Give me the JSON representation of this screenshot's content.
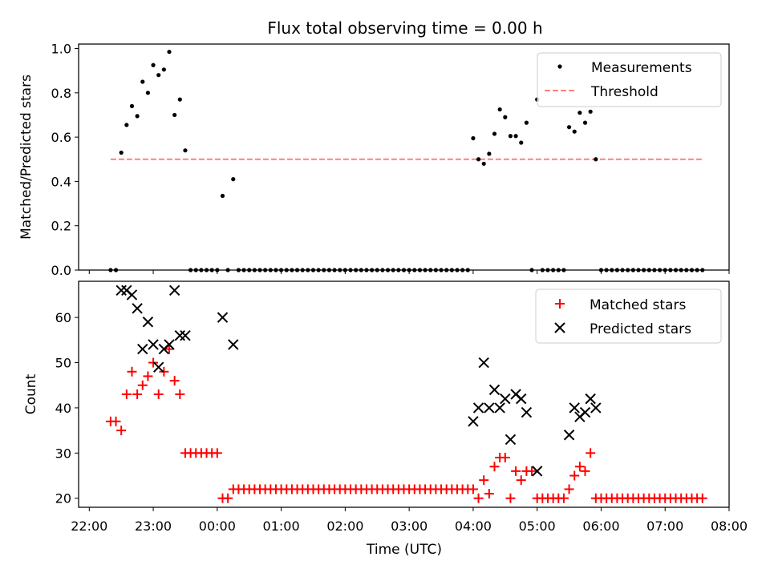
{
  "chart_data": [
    {
      "type": "scatter",
      "title": "Flux total observing time = 0.00 h",
      "ylabel": "Matched/Predicted stars",
      "xlabel": "",
      "xlim": [
        "21:50",
        "08:00"
      ],
      "ylim": [
        0,
        1.02
      ],
      "yticks": [
        "0.0",
        "0.2",
        "0.4",
        "0.6",
        "0.8",
        "1.0"
      ],
      "legend": {
        "placement": "top-right",
        "entries": [
          "Measurements",
          "Threshold"
        ]
      },
      "colors": {
        "measurements": "#000000",
        "threshold": "#ff8080"
      },
      "threshold": {
        "name": "Threshold",
        "value": 0.5,
        "x": [
          "22:20",
          "07:35"
        ]
      },
      "series": [
        {
          "name": "Measurements",
          "points": [
            [
              "22:20",
              0
            ],
            [
              "22:25",
              0
            ],
            [
              "22:30",
              0.53
            ],
            [
              "22:35",
              0.655
            ],
            [
              "22:40",
              0.74
            ],
            [
              "22:45",
              0.695
            ],
            [
              "22:50",
              0.85
            ],
            [
              "22:55",
              0.8
            ],
            [
              "23:00",
              0.925
            ],
            [
              "23:05",
              0.88
            ],
            [
              "23:10",
              0.905
            ],
            [
              "23:15",
              0.985
            ],
            [
              "23:20",
              0.7
            ],
            [
              "23:25",
              0.77
            ],
            [
              "23:30",
              0.54
            ],
            [
              "23:35",
              0
            ],
            [
              "23:40",
              0
            ],
            [
              "23:45",
              0
            ],
            [
              "23:50",
              0
            ],
            [
              "23:55",
              0
            ],
            [
              "00:00",
              0
            ],
            [
              "00:05",
              0.335
            ],
            [
              "00:10",
              0
            ],
            [
              "00:15",
              0.41
            ],
            [
              "00:20",
              0
            ],
            [
              "00:25",
              0
            ],
            [
              "00:30",
              0
            ],
            [
              "00:35",
              0
            ],
            [
              "00:40",
              0
            ],
            [
              "00:45",
              0
            ],
            [
              "00:50",
              0
            ],
            [
              "00:55",
              0
            ],
            [
              "01:00",
              0
            ],
            [
              "01:05",
              0
            ],
            [
              "01:10",
              0
            ],
            [
              "01:15",
              0
            ],
            [
              "01:20",
              0
            ],
            [
              "01:25",
              0
            ],
            [
              "01:30",
              0
            ],
            [
              "01:35",
              0
            ],
            [
              "01:40",
              0
            ],
            [
              "01:45",
              0
            ],
            [
              "01:50",
              0
            ],
            [
              "01:55",
              0
            ],
            [
              "02:00",
              0
            ],
            [
              "02:05",
              0
            ],
            [
              "02:10",
              0
            ],
            [
              "02:15",
              0
            ],
            [
              "02:20",
              0
            ],
            [
              "02:25",
              0
            ],
            [
              "02:30",
              0
            ],
            [
              "02:35",
              0
            ],
            [
              "02:40",
              0
            ],
            [
              "02:45",
              0
            ],
            [
              "02:50",
              0
            ],
            [
              "02:55",
              0
            ],
            [
              "03:00",
              0
            ],
            [
              "03:05",
              0
            ],
            [
              "03:10",
              0
            ],
            [
              "03:15",
              0
            ],
            [
              "03:20",
              0
            ],
            [
              "03:25",
              0
            ],
            [
              "03:30",
              0
            ],
            [
              "03:35",
              0
            ],
            [
              "03:40",
              0
            ],
            [
              "03:45",
              0
            ],
            [
              "03:50",
              0
            ],
            [
              "03:55",
              0
            ],
            [
              "04:00",
              0.595
            ],
            [
              "04:05",
              0.5
            ],
            [
              "04:10",
              0.48
            ],
            [
              "04:15",
              0.525
            ],
            [
              "04:20",
              0.615
            ],
            [
              "04:25",
              0.725
            ],
            [
              "04:30",
              0.69
            ],
            [
              "04:35",
              0.605
            ],
            [
              "04:40",
              0.605
            ],
            [
              "04:45",
              0.575
            ],
            [
              "04:50",
              0.665
            ],
            [
              "04:55",
              0
            ],
            [
              "05:00",
              0.77
            ],
            [
              "05:05",
              0
            ],
            [
              "05:10",
              0
            ],
            [
              "05:15",
              0
            ],
            [
              "05:20",
              0
            ],
            [
              "05:25",
              0
            ],
            [
              "05:30",
              0.645
            ],
            [
              "05:35",
              0.625
            ],
            [
              "05:40",
              0.71
            ],
            [
              "05:45",
              0.665
            ],
            [
              "05:50",
              0.715
            ],
            [
              "05:55",
              0.5
            ],
            [
              "06:00",
              0
            ],
            [
              "06:05",
              0
            ],
            [
              "06:10",
              0
            ],
            [
              "06:15",
              0
            ],
            [
              "06:20",
              0
            ],
            [
              "06:25",
              0
            ],
            [
              "06:30",
              0
            ],
            [
              "06:35",
              0
            ],
            [
              "06:40",
              0
            ],
            [
              "06:45",
              0
            ],
            [
              "06:50",
              0
            ],
            [
              "06:55",
              0
            ],
            [
              "07:00",
              0
            ],
            [
              "07:05",
              0
            ],
            [
              "07:10",
              0
            ],
            [
              "07:15",
              0
            ],
            [
              "07:20",
              0
            ],
            [
              "07:25",
              0
            ],
            [
              "07:30",
              0
            ],
            [
              "07:35",
              0
            ]
          ]
        }
      ]
    },
    {
      "type": "scatter",
      "title": "",
      "ylabel": "Count",
      "xlabel": "Time (UTC)",
      "xlim": [
        "21:50",
        "08:00"
      ],
      "ylim": [
        18,
        68
      ],
      "xticks": [
        "22:00",
        "23:00",
        "00:00",
        "01:00",
        "02:00",
        "03:00",
        "04:00",
        "05:00",
        "06:00",
        "07:00",
        "08:00"
      ],
      "yticks": [
        "20",
        "30",
        "40",
        "50",
        "60"
      ],
      "legend": {
        "placement": "top-right",
        "entries": [
          "Matched stars",
          "Predicted stars"
        ]
      },
      "colors": {
        "matched": "#ff0000",
        "predicted": "#000000"
      },
      "series": [
        {
          "name": "Matched stars",
          "marker": "plus",
          "points": [
            [
              "22:20",
              37
            ],
            [
              "22:25",
              37
            ],
            [
              "22:30",
              35
            ],
            [
              "22:35",
              43
            ],
            [
              "22:40",
              48
            ],
            [
              "22:45",
              43
            ],
            [
              "22:50",
              45
            ],
            [
              "22:55",
              47
            ],
            [
              "23:00",
              50
            ],
            [
              "23:05",
              43
            ],
            [
              "23:10",
              48
            ],
            [
              "23:15",
              53
            ],
            [
              "23:20",
              46
            ],
            [
              "23:25",
              43
            ],
            [
              "23:30",
              30
            ],
            [
              "23:35",
              30
            ],
            [
              "23:40",
              30
            ],
            [
              "23:45",
              30
            ],
            [
              "23:50",
              30
            ],
            [
              "23:55",
              30
            ],
            [
              "00:00",
              30
            ],
            [
              "00:05",
              20
            ],
            [
              "00:10",
              20
            ],
            [
              "00:15",
              22
            ],
            [
              "00:20",
              22
            ],
            [
              "00:25",
              22
            ],
            [
              "00:30",
              22
            ],
            [
              "00:35",
              22
            ],
            [
              "00:40",
              22
            ],
            [
              "00:45",
              22
            ],
            [
              "00:50",
              22
            ],
            [
              "00:55",
              22
            ],
            [
              "01:00",
              22
            ],
            [
              "01:05",
              22
            ],
            [
              "01:10",
              22
            ],
            [
              "01:15",
              22
            ],
            [
              "01:20",
              22
            ],
            [
              "01:25",
              22
            ],
            [
              "01:30",
              22
            ],
            [
              "01:35",
              22
            ],
            [
              "01:40",
              22
            ],
            [
              "01:45",
              22
            ],
            [
              "01:50",
              22
            ],
            [
              "01:55",
              22
            ],
            [
              "02:00",
              22
            ],
            [
              "02:05",
              22
            ],
            [
              "02:10",
              22
            ],
            [
              "02:15",
              22
            ],
            [
              "02:20",
              22
            ],
            [
              "02:25",
              22
            ],
            [
              "02:30",
              22
            ],
            [
              "02:35",
              22
            ],
            [
              "02:40",
              22
            ],
            [
              "02:45",
              22
            ],
            [
              "02:50",
              22
            ],
            [
              "02:55",
              22
            ],
            [
              "03:00",
              22
            ],
            [
              "03:05",
              22
            ],
            [
              "03:10",
              22
            ],
            [
              "03:15",
              22
            ],
            [
              "03:20",
              22
            ],
            [
              "03:25",
              22
            ],
            [
              "03:30",
              22
            ],
            [
              "03:35",
              22
            ],
            [
              "03:40",
              22
            ],
            [
              "03:45",
              22
            ],
            [
              "03:50",
              22
            ],
            [
              "03:55",
              22
            ],
            [
              "04:00",
              22
            ],
            [
              "04:05",
              20
            ],
            [
              "04:10",
              24
            ],
            [
              "04:15",
              21
            ],
            [
              "04:20",
              27
            ],
            [
              "04:25",
              29
            ],
            [
              "04:30",
              29
            ],
            [
              "04:35",
              20
            ],
            [
              "04:40",
              26
            ],
            [
              "04:45",
              24
            ],
            [
              "04:50",
              26
            ],
            [
              "04:55",
              26
            ],
            [
              "05:00",
              20
            ],
            [
              "05:05",
              20
            ],
            [
              "05:10",
              20
            ],
            [
              "05:15",
              20
            ],
            [
              "05:20",
              20
            ],
            [
              "05:25",
              20
            ],
            [
              "05:30",
              22
            ],
            [
              "05:35",
              25
            ],
            [
              "05:40",
              27
            ],
            [
              "05:45",
              26
            ],
            [
              "05:50",
              30
            ],
            [
              "05:55",
              20
            ],
            [
              "06:00",
              20
            ],
            [
              "06:05",
              20
            ],
            [
              "06:10",
              20
            ],
            [
              "06:15",
              20
            ],
            [
              "06:20",
              20
            ],
            [
              "06:25",
              20
            ],
            [
              "06:30",
              20
            ],
            [
              "06:35",
              20
            ],
            [
              "06:40",
              20
            ],
            [
              "06:45",
              20
            ],
            [
              "06:50",
              20
            ],
            [
              "06:55",
              20
            ],
            [
              "07:00",
              20
            ],
            [
              "07:05",
              20
            ],
            [
              "07:10",
              20
            ],
            [
              "07:15",
              20
            ],
            [
              "07:20",
              20
            ],
            [
              "07:25",
              20
            ],
            [
              "07:30",
              20
            ],
            [
              "07:35",
              20
            ]
          ]
        },
        {
          "name": "Predicted stars",
          "marker": "x",
          "points": [
            [
              "22:30",
              66
            ],
            [
              "22:35",
              66
            ],
            [
              "22:40",
              65
            ],
            [
              "22:45",
              62
            ],
            [
              "22:50",
              53
            ],
            [
              "22:55",
              59
            ],
            [
              "23:00",
              54
            ],
            [
              "23:05",
              49
            ],
            [
              "23:10",
              53
            ],
            [
              "23:15",
              54
            ],
            [
              "23:20",
              66
            ],
            [
              "23:25",
              56
            ],
            [
              "23:30",
              56
            ],
            [
              "00:05",
              60
            ],
            [
              "00:15",
              54
            ],
            [
              "04:00",
              37
            ],
            [
              "04:05",
              40
            ],
            [
              "04:10",
              50
            ],
            [
              "04:15",
              40
            ],
            [
              "04:20",
              44
            ],
            [
              "04:25",
              40
            ],
            [
              "04:30",
              42
            ],
            [
              "04:35",
              33
            ],
            [
              "04:40",
              43
            ],
            [
              "04:45",
              42
            ],
            [
              "04:50",
              39
            ],
            [
              "05:00",
              26
            ],
            [
              "05:30",
              34
            ],
            [
              "05:35",
              40
            ],
            [
              "05:40",
              38
            ],
            [
              "05:45",
              39
            ],
            [
              "05:50",
              42
            ],
            [
              "05:55",
              40
            ]
          ]
        }
      ]
    }
  ]
}
